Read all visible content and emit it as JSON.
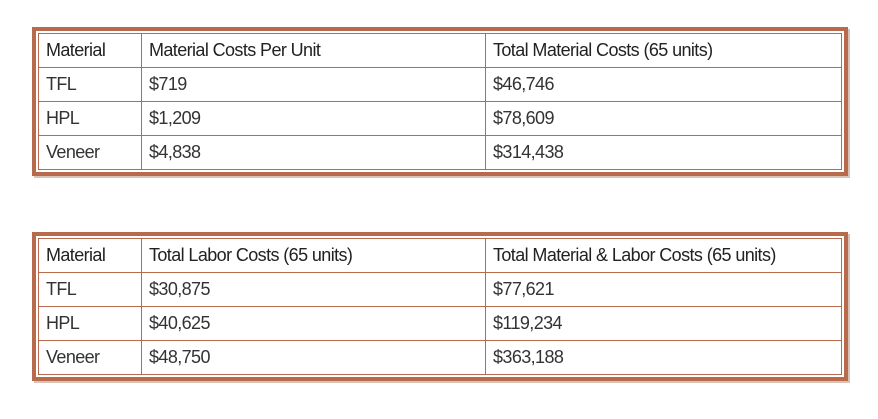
{
  "tables": [
    {
      "headers": [
        "Material",
        "Material Costs Per Unit",
        "Total Material Costs (65 units)"
      ],
      "rows": [
        [
          "TFL",
          "$719",
          "$46,746"
        ],
        [
          "HPL",
          "$1,209",
          "$78,609"
        ],
        [
          "Veneer",
          "$4,838",
          "$314,438"
        ]
      ]
    },
    {
      "headers": [
        "Material",
        "Total Labor Costs (65 units)",
        "Total Material & Labor Costs (65 units)"
      ],
      "rows": [
        [
          "TFL",
          "$30,875",
          "$77,621"
        ],
        [
          "HPL",
          "$40,625",
          "$119,234"
        ],
        [
          "Veneer",
          "$48,750",
          "$363,188"
        ]
      ]
    }
  ]
}
